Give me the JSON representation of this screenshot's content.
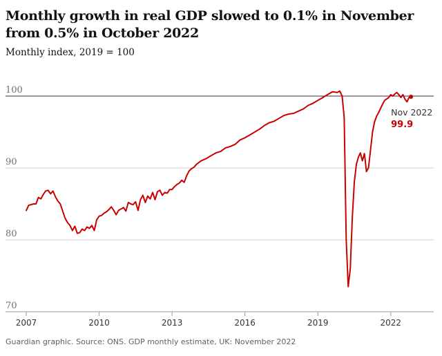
{
  "chart_data": {
    "type": "line",
    "title": "Monthly growth in real GDP slowed to 0.1% in November from 0.5% in October 2022",
    "subtitle": "Monthly index, 2019 = 100",
    "footer": "Guardian graphic. Source: ONS. GDP monthly estimate, UK: November 2022",
    "ylim": [
      70,
      100
    ],
    "yticks": [
      70,
      80,
      90,
      100
    ],
    "xlim": [
      2007,
      2023.0
    ],
    "xticks": [
      "2007",
      "2010",
      "2013",
      "2016",
      "2019",
      "2022"
    ],
    "grid": true,
    "line_color": "#c70000",
    "annotation": {
      "label": "Nov 2022",
      "value": "99.9"
    },
    "series": [
      {
        "x": [
          2007.0,
          2007.1,
          2007.2,
          2007.3,
          2007.4,
          2007.5,
          2007.6,
          2007.7,
          2007.8,
          2007.9,
          2008.0,
          2008.1,
          2008.2,
          2008.3,
          2008.4,
          2008.5,
          2008.6,
          2008.7,
          2008.8,
          2008.9,
          2009.0,
          2009.1,
          2009.2,
          2009.3,
          2009.4,
          2009.5,
          2009.6,
          2009.7,
          2009.8,
          2009.9,
          2010.0,
          2010.1,
          2010.2,
          2010.3,
          2010.4,
          2010.5,
          2010.6,
          2010.7,
          2010.8,
          2010.9,
          2011.0,
          2011.1,
          2011.2,
          2011.3,
          2011.4,
          2011.5,
          2011.6,
          2011.7,
          2011.8,
          2011.9,
          2012.0,
          2012.1,
          2012.2,
          2012.3,
          2012.4,
          2012.5,
          2012.6,
          2012.7,
          2012.8,
          2012.9,
          2013.0,
          2013.1,
          2013.2,
          2013.3,
          2013.4,
          2013.5,
          2013.6,
          2013.7,
          2013.8,
          2013.9,
          2014.0,
          2014.2,
          2014.4,
          2014.6,
          2014.8,
          2015.0,
          2015.2,
          2015.4,
          2015.6,
          2015.8,
          2016.0,
          2016.2,
          2016.4,
          2016.6,
          2016.8,
          2017.0,
          2017.2,
          2017.4,
          2017.6,
          2017.8,
          2018.0,
          2018.2,
          2018.4,
          2018.6,
          2018.8,
          2019.0,
          2019.2,
          2019.4,
          2019.6,
          2019.8,
          2019.9,
          2020.0,
          2020.083,
          2020.167,
          2020.25,
          2020.333,
          2020.417,
          2020.5,
          2020.583,
          2020.667,
          2020.75,
          2020.833,
          2020.917,
          2021.0,
          2021.083,
          2021.167,
          2021.25,
          2021.333,
          2021.417,
          2021.5,
          2021.583,
          2021.667,
          2021.75,
          2021.833,
          2021.917,
          2022.0,
          2022.083,
          2022.167,
          2022.25,
          2022.333,
          2022.417,
          2022.5,
          2022.583,
          2022.667,
          2022.75,
          2022.833
        ],
        "y": [
          84.1,
          84.8,
          84.9,
          85.0,
          85.0,
          85.9,
          85.7,
          86.3,
          86.8,
          86.9,
          86.4,
          86.8,
          86.0,
          85.4,
          85.0,
          84.0,
          83.0,
          82.4,
          82.0,
          81.3,
          81.9,
          80.9,
          81.0,
          81.5,
          81.3,
          81.8,
          81.6,
          82.0,
          81.3,
          82.8,
          83.3,
          83.4,
          83.7,
          83.9,
          84.2,
          84.6,
          84.1,
          83.5,
          84.1,
          84.3,
          84.5,
          84.0,
          85.2,
          85.0,
          84.9,
          85.3,
          84.1,
          85.6,
          86.2,
          85.2,
          86.1,
          85.7,
          86.6,
          85.6,
          86.7,
          86.9,
          86.2,
          86.6,
          86.5,
          87.0,
          87.0,
          87.4,
          87.7,
          87.9,
          88.3,
          88.0,
          88.9,
          89.6,
          89.9,
          90.1,
          90.5,
          91.0,
          91.3,
          91.7,
          92.1,
          92.3,
          92.8,
          93.0,
          93.3,
          93.9,
          94.2,
          94.6,
          95.0,
          95.4,
          95.9,
          96.3,
          96.5,
          96.9,
          97.3,
          97.5,
          97.6,
          97.9,
          98.2,
          98.7,
          99.0,
          99.4,
          99.8,
          100.2,
          100.6,
          100.5,
          100.7,
          100.0,
          97.0,
          80.0,
          73.5,
          76.0,
          83.0,
          88.0,
          90.5,
          91.5,
          92.1,
          91.0,
          92.0,
          89.5,
          90.0,
          92.5,
          95.0,
          96.4,
          97.2,
          97.7,
          98.3,
          98.9,
          99.4,
          99.6,
          99.8,
          100.2,
          100.0,
          100.3,
          100.5,
          100.2,
          99.8,
          100.2,
          99.6,
          99.2,
          99.8,
          99.9
        ]
      }
    ]
  }
}
